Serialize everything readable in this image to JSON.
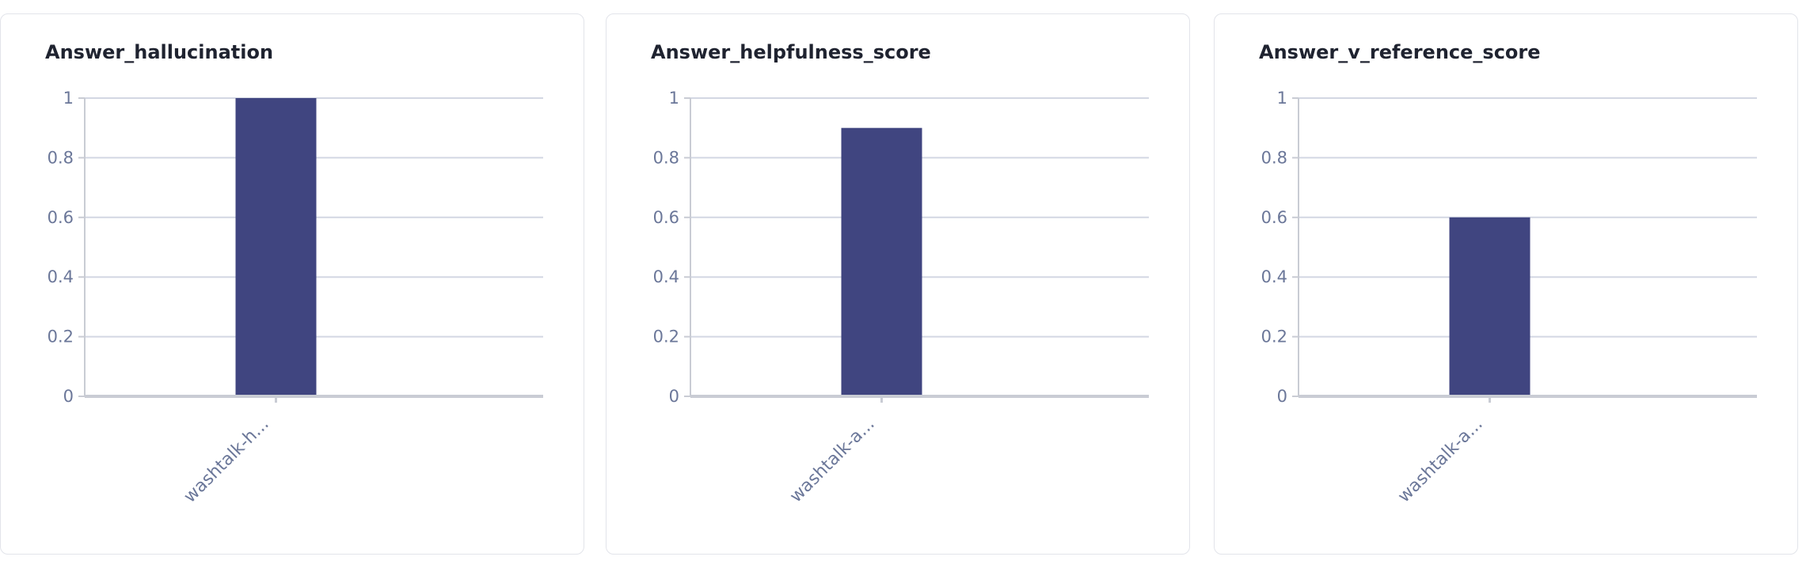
{
  "chart_data": [
    {
      "type": "bar",
      "title": "Answer_hallucination",
      "categories": [
        "washtalk-h..."
      ],
      "values": [
        1
      ],
      "ylim": [
        0,
        1
      ],
      "yticks": [
        "0",
        "0.2",
        "0.4",
        "0.6",
        "0.8",
        "1"
      ],
      "grid": true,
      "xlabel": "",
      "ylabel": ""
    },
    {
      "type": "bar",
      "title": "Answer_helpfulness_score",
      "categories": [
        "washtalk-a..."
      ],
      "values": [
        0.9
      ],
      "ylim": [
        0,
        1
      ],
      "yticks": [
        "0",
        "0.2",
        "0.4",
        "0.6",
        "0.8",
        "1"
      ],
      "grid": true,
      "xlabel": "",
      "ylabel": ""
    },
    {
      "type": "bar",
      "title": "Answer_v_reference_score",
      "categories": [
        "washtalk-a..."
      ],
      "values": [
        0.6
      ],
      "ylim": [
        0,
        1
      ],
      "yticks": [
        "0",
        "0.2",
        "0.4",
        "0.6",
        "0.8",
        "1"
      ],
      "grid": true,
      "xlabel": "",
      "ylabel": ""
    }
  ],
  "colors": {
    "bar": "#404580",
    "grid": "#d3d7e3",
    "axis": "#c9ccd4",
    "tick_text": "#6b7799"
  }
}
